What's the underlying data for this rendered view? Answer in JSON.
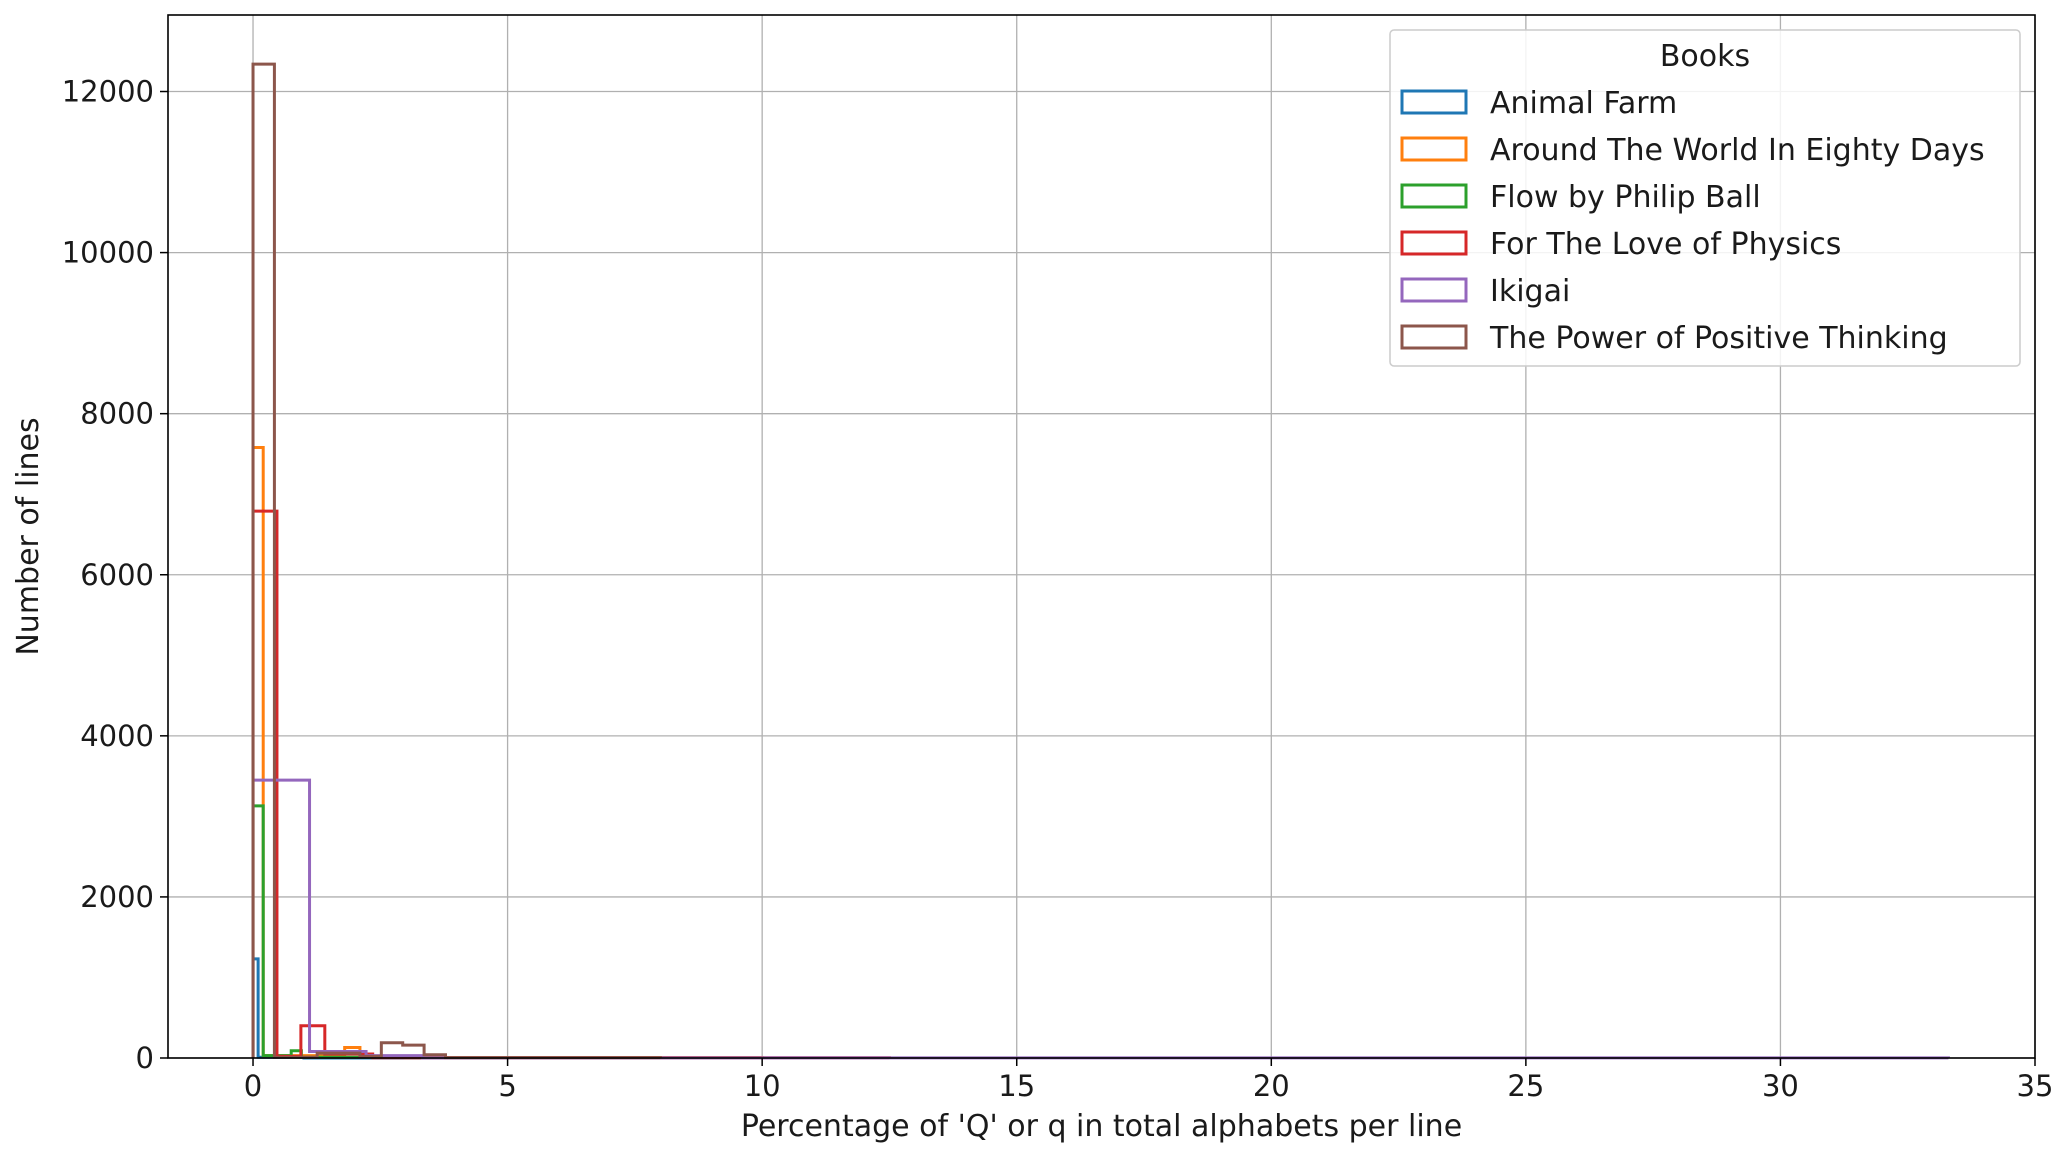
{
  "chart_data": {
    "type": "histogram (step)",
    "xlabel": "Percentage of 'Q' or q in total alphabets per line",
    "ylabel": "Number of lines",
    "xlim": [
      -1.67,
      35
    ],
    "ylim": [
      0,
      12950
    ],
    "xticks": [
      0,
      5,
      10,
      15,
      20,
      25,
      30,
      35
    ],
    "yticks": [
      0,
      2000,
      4000,
      6000,
      8000,
      10000,
      12000
    ],
    "grid": true,
    "legend": {
      "title": "Books",
      "placement": "top-right"
    },
    "series": [
      {
        "name": "Animal Farm",
        "color": "#1f77b4",
        "bins": [
          {
            "x0": 0.0,
            "x1": 0.1,
            "count": 1230
          },
          {
            "x0": 0.1,
            "x1": 1.0,
            "count": 10
          },
          {
            "x0": 1.0,
            "x1": 5.0,
            "count": 0
          }
        ]
      },
      {
        "name": "Around The World In Eighty Days",
        "color": "#ff7f0e",
        "bins": [
          {
            "x0": 0.0,
            "x1": 0.2,
            "count": 7580
          },
          {
            "x0": 0.2,
            "x1": 1.8,
            "count": 30
          },
          {
            "x0": 1.8,
            "x1": 2.1,
            "count": 130
          },
          {
            "x0": 2.1,
            "x1": 3.0,
            "count": 20
          },
          {
            "x0": 3.0,
            "x1": 10.0,
            "count": 5
          }
        ]
      },
      {
        "name": "Flow by Philip Ball",
        "color": "#2ca02c",
        "bins": [
          {
            "x0": 0.0,
            "x1": 0.2,
            "count": 3130
          },
          {
            "x0": 0.2,
            "x1": 0.55,
            "count": 30
          },
          {
            "x0": 0.55,
            "x1": 0.75,
            "count": 30
          },
          {
            "x0": 0.75,
            "x1": 0.95,
            "count": 90
          },
          {
            "x0": 0.95,
            "x1": 3.0,
            "count": 10
          }
        ]
      },
      {
        "name": "For The Love of Physics",
        "color": "#d62728",
        "bins": [
          {
            "x0": 0.0,
            "x1": 0.47,
            "count": 6790
          },
          {
            "x0": 0.47,
            "x1": 0.94,
            "count": 20
          },
          {
            "x0": 0.94,
            "x1": 1.41,
            "count": 400
          },
          {
            "x0": 1.41,
            "x1": 2.35,
            "count": 50
          },
          {
            "x0": 2.35,
            "x1": 12.5,
            "count": 3
          }
        ]
      },
      {
        "name": "Ikigai",
        "color": "#9467bd",
        "bins": [
          {
            "x0": 0.0,
            "x1": 1.11,
            "count": 3450
          },
          {
            "x0": 1.11,
            "x1": 2.22,
            "count": 80
          },
          {
            "x0": 2.22,
            "x1": 3.33,
            "count": 30
          },
          {
            "x0": 3.33,
            "x1": 33.3,
            "count": 2
          }
        ]
      },
      {
        "name": "The Power of Positive Thinking",
        "color": "#8c564b",
        "bins": [
          {
            "x0": 0.0,
            "x1": 0.42,
            "count": 12340
          },
          {
            "x0": 0.42,
            "x1": 1.26,
            "count": 10
          },
          {
            "x0": 1.26,
            "x1": 2.1,
            "count": 60
          },
          {
            "x0": 2.1,
            "x1": 2.52,
            "count": 20
          },
          {
            "x0": 2.52,
            "x1": 2.94,
            "count": 190
          },
          {
            "x0": 2.94,
            "x1": 3.36,
            "count": 160
          },
          {
            "x0": 3.36,
            "x1": 3.78,
            "count": 40
          },
          {
            "x0": 3.78,
            "x1": 8.0,
            "count": 5
          }
        ]
      }
    ]
  }
}
